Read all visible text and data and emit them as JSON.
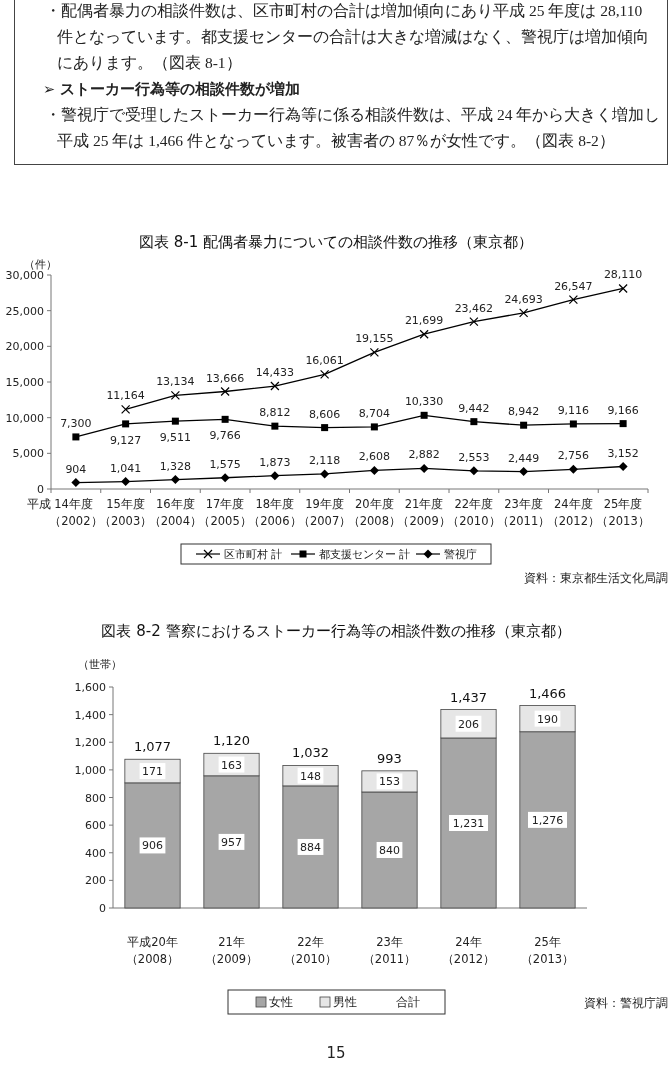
{
  "chart_data": [
    {
      "type": "other",
      "annotations": [
        "・配偶者暴力の相談件数は、区市町村の合計は増加傾向にあり平成 25 年度は 28,110 件となっています。都支援センターの合計は大きな増減はなく、警視庁は増加傾向にあります。（図表 8-1）",
        "➢ ストーカー行為等の相談件数が増加",
        "・警視庁で受理したストーカー行為等に係る相談件数は、平成 24 年から大きく増加し平成 25 年は 1,466 件となっています。被害者の 87％が女性です。（図表 8-2）"
      ]
    },
    {
      "type": "line",
      "title": "図表 8-1  配偶者暴力についての相談件数の推移（東京都）",
      "ylabel": "（件）",
      "categories": [
        "平成 14年度（2002）",
        "15年度（2003）",
        "16年度（2004）",
        "17年度（2005）",
        "18年度（2006）",
        "19年度（2007）",
        "20年度（2008）",
        "21年度（2009）",
        "22年度（2010）",
        "23年度（2011）",
        "24年度（2012）",
        "25年度（2013）"
      ],
      "series": [
        {
          "name": "区市町村 計",
          "color": "#000000",
          "marker": "cross",
          "values": [
            null,
            11164,
            13134,
            13666,
            14433,
            16061,
            19155,
            21699,
            23462,
            24693,
            26547,
            28110
          ],
          "value_labels": [
            null,
            "11,164",
            "13,134",
            "13,666",
            "14,433",
            "16,061",
            "19,155",
            "21,699",
            "23,462",
            "24,693",
            "26,547",
            "28,110"
          ]
        },
        {
          "name": "都支援センター 計",
          "color": "#000000",
          "marker": "square",
          "values": [
            7300,
            9127,
            9511,
            9766,
            8812,
            8606,
            8704,
            10330,
            9442,
            8942,
            9116,
            9166
          ],
          "value_labels": [
            "7,300",
            "9,127",
            "9,511",
            "9,766",
            "8,812",
            "8,606",
            "8,704",
            "10,330",
            "9,442",
            "8,942",
            "9,116",
            "9,166"
          ]
        },
        {
          "name": "警視庁",
          "color": "#000000",
          "marker": "diamond",
          "values": [
            904,
            1041,
            1328,
            1575,
            1873,
            2118,
            2608,
            2882,
            2553,
            2449,
            2756,
            3152
          ],
          "value_labels": [
            "904",
            "1,041",
            "1,328",
            "1,575",
            "1,873",
            "2,118",
            "2,608",
            "2,882",
            "2,553",
            "2,449",
            "2,756",
            "3,152"
          ]
        }
      ],
      "ylim": [
        0,
        30000
      ],
      "yticks": [
        0,
        {
          "value": 5000,
          "label": "5,000"
        },
        {
          "value": 10000,
          "label": "10,000"
        },
        {
          "value": 15000,
          "label": "15,000"
        },
        {
          "value": 20000,
          "label": "20,000"
        },
        {
          "value": 25000,
          "label": "25,000"
        },
        {
          "value": 30000,
          "label": "30,000"
        }
      ],
      "legend": "bottom",
      "annotations": [
        "資料：東京都生活文化局調"
      ]
    },
    {
      "type": "bar",
      "stacked": true,
      "title": "図表 8-2  警察におけるストーカー行為等の相談件数の推移（東京都）",
      "ylabel": "（世帯）",
      "categories": [
        "平成20年（2008）",
        "21年（2009）",
        "22年（2010）",
        "23年（2011）",
        "24年（2012）",
        "25年（2013）"
      ],
      "series": [
        {
          "name": "女性",
          "color": "#a6a6a6",
          "values": [
            906,
            957,
            884,
            840,
            1231,
            1276
          ],
          "value_labels": [
            "906",
            "957",
            "884",
            "840",
            "1,231",
            "1,276"
          ]
        },
        {
          "name": "男性",
          "color": "#e6e6e6",
          "values": [
            171,
            163,
            148,
            153,
            206,
            190
          ],
          "value_labels": [
            "171",
            "163",
            "148",
            "153",
            "206",
            "190"
          ]
        }
      ],
      "totals": [
        "1,077",
        "1,120",
        "1,032",
        "993",
        "1,437",
        "1,466"
      ],
      "ylim": [
        0,
        1600
      ],
      "yticks": [
        0,
        200,
        400,
        600,
        800,
        {
          "value": 1000,
          "label": "1,000"
        },
        {
          "value": 1200,
          "label": "1,200"
        },
        {
          "value": 1400,
          "label": "1,400"
        },
        {
          "value": 1600,
          "label": "1,600"
        }
      ],
      "legend": "bottom",
      "annotations": [
        "合計",
        "資料：警視庁調",
        "15"
      ]
    }
  ]
}
